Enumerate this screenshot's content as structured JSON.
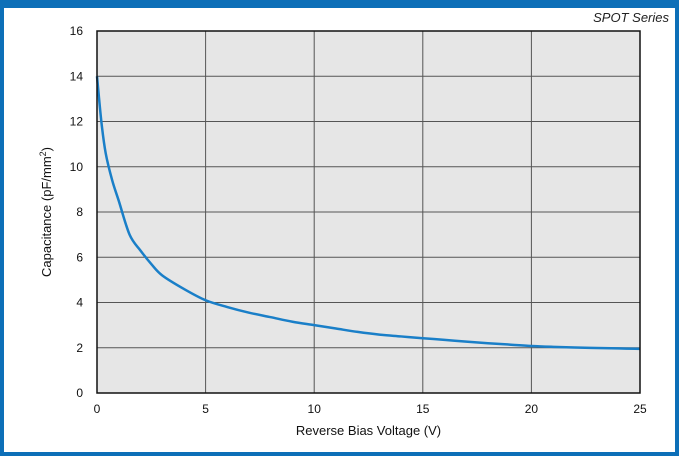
{
  "header": {
    "series_label": "SPOT Series"
  },
  "colors": {
    "frame": "#0d6fb8",
    "curve": "#1a7fc8",
    "plot_bg": "#e6e6e6",
    "grid": "#555555"
  },
  "chart_data": {
    "type": "line",
    "xlabel": "Reverse Bias Voltage (V)",
    "ylabel_base": "Capacitance (pF/mm",
    "ylabel_sup": "2",
    "ylabel_end": ")",
    "xlim": [
      0,
      25
    ],
    "ylim": [
      0,
      16
    ],
    "xticks": [
      0,
      5,
      10,
      15,
      20,
      25
    ],
    "yticks": [
      0,
      2,
      4,
      6,
      8,
      10,
      12,
      14,
      16
    ],
    "grid": true,
    "series": [
      {
        "x": [
          0,
          0.2,
          0.4,
          0.7,
          1,
          1.5,
          2,
          2.5,
          3,
          4,
          5,
          6,
          7,
          8,
          9,
          10,
          11,
          12,
          13,
          14,
          15,
          16,
          17,
          18,
          19,
          20,
          21,
          22,
          23,
          24,
          25
        ],
        "y": [
          14.0,
          12.0,
          10.6,
          9.4,
          8.5,
          7.0,
          6.3,
          5.7,
          5.2,
          4.6,
          4.1,
          3.8,
          3.55,
          3.35,
          3.15,
          3.0,
          2.85,
          2.7,
          2.58,
          2.5,
          2.42,
          2.35,
          2.27,
          2.2,
          2.14,
          2.08,
          2.04,
          2.01,
          1.99,
          1.97,
          1.95
        ]
      }
    ]
  }
}
